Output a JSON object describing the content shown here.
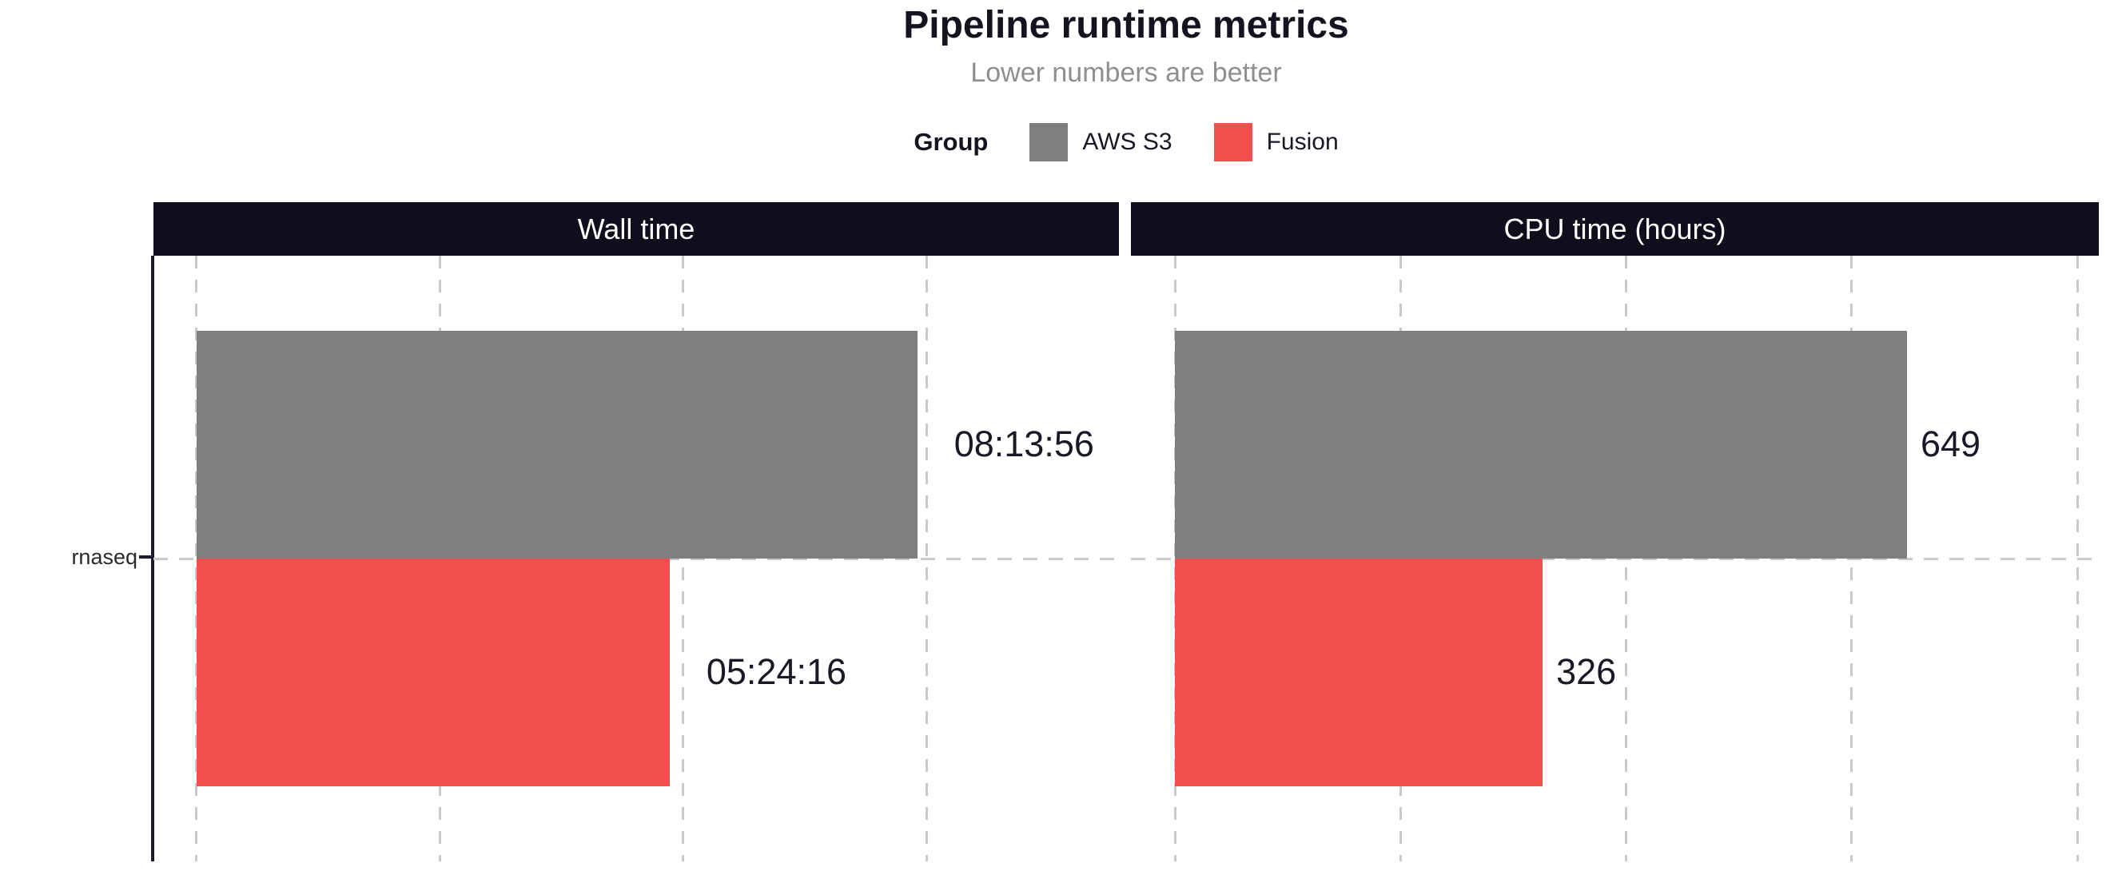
{
  "chart_data": {
    "type": "bar",
    "orientation": "horizontal",
    "title": "Pipeline runtime metrics",
    "subtitle": "Lower numbers are better",
    "legend": {
      "title": "Group",
      "position": "top",
      "entries": [
        {
          "label": "AWS S3",
          "color": "#7f7f7f"
        },
        {
          "label": "Fusion",
          "color": "#f44f4f"
        }
      ]
    },
    "categories": [
      "rnaseq"
    ],
    "grid": {
      "style": "dashed",
      "color": "#c9c9c9"
    },
    "facets": [
      {
        "label": "Wall time",
        "unit": "seconds",
        "x_domain": [
          -1774,
          37913
        ],
        "grid_step": 10000,
        "label_nudge": 1500,
        "series": [
          {
            "name": "AWS S3",
            "value": 29636,
            "display": "08:13:56"
          },
          {
            "name": "Fusion",
            "value": 19456,
            "display": "05:24:16"
          }
        ]
      },
      {
        "label": "CPU time (hours)",
        "unit": "hours",
        "x_domain": [
          -39,
          819
        ],
        "grid_step": 200,
        "label_nudge": 12,
        "series": [
          {
            "name": "AWS S3",
            "value": 649,
            "display": "649"
          },
          {
            "name": "Fusion",
            "value": 326,
            "display": "326"
          }
        ]
      }
    ]
  },
  "y_axis": {
    "category": "rnaseq"
  },
  "colors": {
    "strip_bg": "#110d1d",
    "strip_text": "#ffffff",
    "axis": "#1f1b2e",
    "title_text": "#16121f",
    "subtitle_text": "#8f8f8f",
    "value_label_text": "#1a1726",
    "background": "#ffffff"
  }
}
